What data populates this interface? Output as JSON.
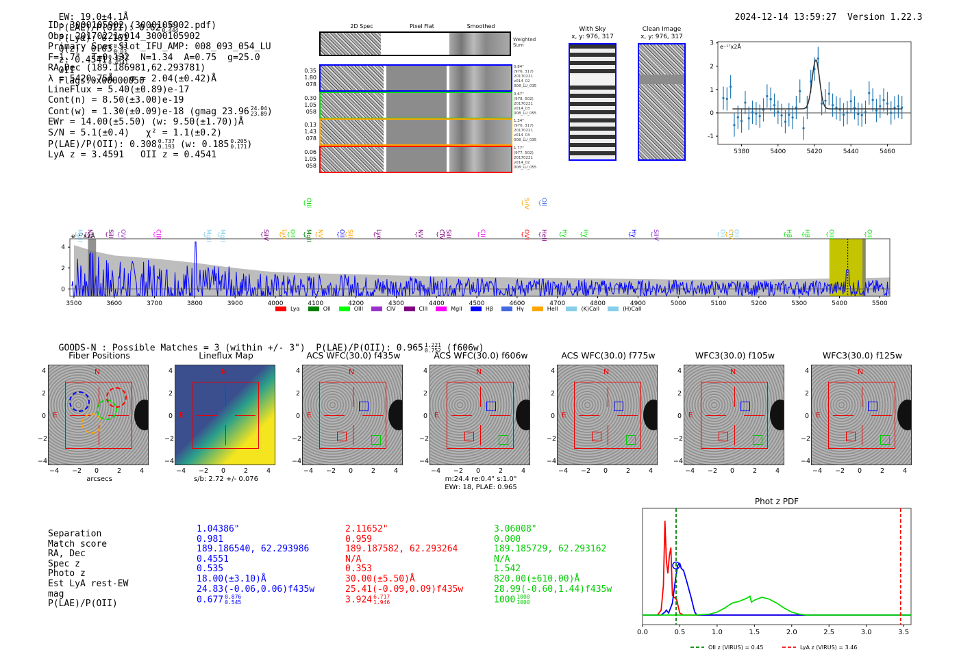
{
  "header": {
    "ew": "EW: 19.0±4.1Å",
    "plae_label": "P(LAE)/P(OII): 0.62",
    "plae_hi": "1.051",
    "plae_lo": "0.444",
    "plya": "P(Lyα): 0.161",
    "qz_label": "Q(z): 0.03",
    "qz_hi": "0.03",
    "qz_lo": "0.03",
    "z_label": "z: 0.4541",
    "z_hi": "0.4541",
    "z_lo": "0.4541",
    "z_line": "OII",
    "flags": "Flags:0x00000050",
    "timestamp": "2024-12-14 13:59:27",
    "version": "Version 1.22.3"
  },
  "info": {
    "id": "ID: 3000105902 (3000105902.pdf)",
    "obs": "Obs: 20170221v014_3000105902",
    "primary": "Primary Spec_Slot_IFU_AMP: 008_093_054_LU",
    "params": "F=1.7\"  T=0.132  N=1.34  A=0.75  g=25.0",
    "radec": "RA,Dec (189.186981,62.293781)",
    "lambda": "λ = 5420.75Å   σ = 2.04(±0.42)Å",
    "lineflux": "LineFlux = 5.40(±0.89)e-17",
    "cont_n": "Cont(n) = 8.50(±3.00)e-19",
    "cont_w": "Cont(w) = 1.30(±0.09)e-18 (gmag 23.96",
    "gmag_hi": "24.04",
    "gmag_lo": "23.89",
    "ewr": "EWr = 14.00(±5.50) (w: 9.50(±1.70))Å",
    "sn": "S/N = 5.1(±0.4)   χ² = 1.1(±0.2)",
    "plae": "P(LAE)/P(OII): 0.308",
    "plae_hi": "0.737",
    "plae_lo": "0.193",
    "plae_w": "(w: 0.185",
    "plae_w_hi": "0.205",
    "plae_w_lo": "0.171",
    "z": "LyA z = 3.4591   OII z = 0.4541"
  },
  "fiber_panel": {
    "col_titles": [
      "2D Spec",
      "Pixel Flat",
      "Smoothed"
    ],
    "weighted_sum": "Weighted\nSum",
    "rows": [
      {
        "labels": [
          "0.35",
          "1.80",
          "078"
        ],
        "color": "#0000ff",
        "info": "0.84\"\n(976, 317)\n20170221\nv014_02\n008_LU_035"
      },
      {
        "labels": [
          "0.30",
          "1.05",
          "058"
        ],
        "color": "#00dd00",
        "info": "0.67\"\n(978, 502)\n20170221\nv014_03\n008_LU_055"
      },
      {
        "labels": [
          "0.13",
          "1.43",
          "078"
        ],
        "color": "#ffa500",
        "info": "1.34\"\n(976, 317)\n20170221\nv014_03\n008_LU_035"
      },
      {
        "labels": [
          "0.06",
          "1.05",
          "058"
        ],
        "color": "#ff0000",
        "info": "1.77\"\n(977, 502)\n20170221\nv014_02\n008_LU_055"
      }
    ]
  },
  "sky_panels": {
    "with_sky_title": "With Sky",
    "with_sky_xy": "x, y: 976, 317",
    "clean_title": "Clean Image",
    "clean_xy": "x, y: 976, 317"
  },
  "chart_data": [
    {
      "type": "scatter",
      "name": "line-fit-zoom",
      "ylabel_text": "e⁻¹⁷x2Å",
      "xlim": [
        5367,
        5473
      ],
      "ylim": [
        -1.35,
        3.05
      ],
      "xticks": [
        5380,
        5400,
        5420,
        5440,
        5460
      ],
      "yticks": [
        -1,
        0,
        1,
        2,
        3
      ],
      "points": {
        "x": [
          5370,
          5372,
          5374,
          5376,
          5378,
          5380,
          5382,
          5384,
          5386,
          5388,
          5390,
          5392,
          5394,
          5396,
          5398,
          5400,
          5402,
          5404,
          5406,
          5408,
          5410,
          5412,
          5414,
          5416,
          5418,
          5420,
          5422,
          5424,
          5426,
          5428,
          5430,
          5432,
          5434,
          5436,
          5438,
          5440,
          5442,
          5444,
          5446,
          5448,
          5450,
          5452,
          5454,
          5456,
          5458,
          5460,
          5462,
          5464,
          5466,
          5468
        ],
        "y": [
          0.63,
          0.6,
          1.12,
          -0.52,
          -0.19,
          -0.35,
          0.44,
          -0.23,
          0.03,
          -0.03,
          -0.14,
          0.13,
          0.72,
          0.59,
          0.33,
          0.03,
          -0.11,
          -0.38,
          -0.08,
          -0.2,
          0.23,
          0.93,
          -0.66,
          0.23,
          1.35,
          1.88,
          2.33,
          0.4,
          0.52,
          0.82,
          0.33,
          0.22,
          0.15,
          -0.08,
          0.01,
          0.5,
          0.22,
          -0.05,
          -0.1,
          0.03,
          0.85,
          0.55,
          0.1,
          0.28,
          0.55,
          0.4,
          0.0,
          0.22,
          0.28,
          0.23
        ],
        "err": 0.5
      },
      "fit": {
        "center": 5420.75,
        "sigma": 2.04,
        "amplitude": 2.1,
        "baseline": 0.17,
        "x_start": 5375,
        "x_end": 5468
      }
    },
    {
      "type": "line",
      "name": "full-spectrum",
      "ylabel_text": "e⁻¹⁷x2Å",
      "xlim": [
        3490,
        5525
      ],
      "ylim": [
        -0.7,
        4.8
      ],
      "xticks": [
        3500,
        3600,
        3700,
        3800,
        3900,
        4000,
        4100,
        4200,
        4300,
        4400,
        4500,
        4600,
        4700,
        4800,
        4900,
        5000,
        5100,
        5200,
        5300,
        5400,
        5500
      ],
      "yticks": [
        0,
        2,
        4
      ],
      "error_envelope": {
        "x": [
          3500,
          3550,
          3600,
          3700,
          3800,
          3900,
          4000,
          4200,
          4400,
          4600,
          4800,
          5000,
          5200,
          5400,
          5525
        ],
        "y": [
          4.2,
          3.6,
          3.2,
          2.9,
          2.5,
          2.0,
          1.6,
          1.4,
          1.2,
          1.1,
          1.0,
          0.9,
          0.9,
          1.0,
          1.1
        ]
      },
      "highlight_band": {
        "x0": 5375,
        "x1": 5465,
        "color": "#c4c400"
      },
      "line_marker": 5420.75,
      "masked_band": {
        "x0": 3535,
        "x1": 3555
      },
      "line_labels": [
        {
          "label": "MgII",
          "wave": 3505,
          "color": "#87ceeb",
          "row": 1
        },
        {
          "label": "NV",
          "wave": 3530,
          "color": "#800080",
          "row": 1
        },
        {
          "label": "SiII",
          "wave": 3582,
          "color": "#800080",
          "row": 1
        },
        {
          "label": "OVI",
          "wave": 3612,
          "color": "#9932cc",
          "row": 1
        },
        {
          "label": "CIII",
          "wave": 3700,
          "color": "#ff00ff",
          "row": 1
        },
        {
          "label": "MgII",
          "wave": 3825,
          "color": "#87ceeb",
          "row": 1
        },
        {
          "label": "MgII",
          "wave": 3860,
          "color": "#87ceeb",
          "row": 1
        },
        {
          "label": "SiIV",
          "wave": 3967,
          "color": "#800080",
          "row": 1
        },
        {
          "label": "Lyα",
          "wave": 4013,
          "color": "#ffa500",
          "row": 1
        },
        {
          "label": "OII",
          "wave": 4033,
          "color": "#00dd00",
          "row": 1
        },
        {
          "label": "MgII",
          "wave": 4073,
          "color": "#008000",
          "row": 1
        },
        {
          "label": "NV",
          "wave": 4102,
          "color": "#ffa500",
          "row": 1
        },
        {
          "label": "OIII",
          "wave": 4073,
          "color": "#00dd00",
          "row": 0
        },
        {
          "label": "OII",
          "wave": 4156,
          "color": "#0000ff",
          "row": 1
        },
        {
          "label": "SiII",
          "wave": 4176,
          "color": "#ffa500",
          "row": 1
        },
        {
          "label": "Lyα",
          "wave": 4247,
          "color": "#800080",
          "row": 1
        },
        {
          "label": "NV",
          "wave": 4350,
          "color": "#800080",
          "row": 1
        },
        {
          "label": "CIV",
          "wave": 4403,
          "color": "#800080",
          "row": 1
        },
        {
          "label": "SiII",
          "wave": 4420,
          "color": "#800080",
          "row": 1
        },
        {
          "label": "CII",
          "wave": 4505,
          "color": "#ff00ff",
          "row": 1
        },
        {
          "label": "OVI",
          "wave": 4614,
          "color": "#ff0000",
          "row": 1
        },
        {
          "label": "SiIV",
          "wave": 4614,
          "color": "#ffa500",
          "row": 0
        },
        {
          "label": "OII",
          "wave": 4657,
          "color": "#4169e1",
          "row": 0
        },
        {
          "label": "HeII",
          "wave": 4657,
          "color": "#800080",
          "row": 1
        },
        {
          "label": "Hγ",
          "wave": 4708,
          "color": "#00dd00",
          "row": 1
        },
        {
          "label": "Hγ",
          "wave": 4760,
          "color": "#00dd00",
          "row": 1
        },
        {
          "label": "Hγ",
          "wave": 4880,
          "color": "#0000ff",
          "row": 1
        },
        {
          "label": "SiIV",
          "wave": 4935,
          "color": "#9932cc",
          "row": 1
        },
        {
          "label": "OII",
          "wave": 5100,
          "color": "#87ceeb",
          "row": 1
        },
        {
          "label": "CIV",
          "wave": 5120,
          "color": "#ffa500",
          "row": 1
        },
        {
          "label": "OII",
          "wave": 5135,
          "color": "#87ceeb",
          "row": 1
        },
        {
          "label": "Hβ",
          "wave": 5265,
          "color": "#00dd00",
          "row": 1
        },
        {
          "label": "Hβ",
          "wave": 5310,
          "color": "#00dd00",
          "row": 1
        },
        {
          "label": "OIII",
          "wave": 5370,
          "color": "#00dd00",
          "row": 1
        },
        {
          "label": "OIII",
          "wave": 5465,
          "color": "#00dd00",
          "row": 1
        }
      ]
    },
    {
      "type": "line",
      "name": "phot-z-pdf",
      "title": "Phot z PDF",
      "xlim": [
        0.0,
        3.6
      ],
      "ylim": [
        0,
        1.0
      ],
      "xticks": [
        0.0,
        0.5,
        1.0,
        1.5,
        2.0,
        2.5,
        3.0,
        3.5
      ],
      "series": [
        {
          "name": "red",
          "color": "#ff0000",
          "x": [
            0,
            0.2,
            0.25,
            0.28,
            0.3,
            0.32,
            0.34,
            0.36,
            0.38,
            0.4,
            0.42,
            0.44,
            0.46,
            0.48,
            0.5,
            0.55,
            0.6,
            3.6
          ],
          "y": [
            0,
            0,
            0.05,
            0.3,
            0.95,
            0.55,
            0.42,
            0.6,
            0.68,
            0.2,
            0.18,
            0.17,
            0.15,
            0.08,
            0.02,
            0.0,
            0,
            0
          ]
        },
        {
          "name": "blue",
          "color": "#0000ff",
          "x": [
            0,
            0.25,
            0.3,
            0.32,
            0.35,
            0.4,
            0.44,
            0.47,
            0.5,
            0.52,
            0.55,
            0.6,
            0.65,
            0.7,
            0.73,
            3.6
          ],
          "y": [
            0,
            0,
            0.03,
            0.05,
            0.02,
            0.12,
            0.35,
            0.5,
            0.52,
            0.47,
            0.45,
            0.32,
            0.18,
            0.03,
            0,
            0
          ]
        },
        {
          "name": "green",
          "color": "#00dd00",
          "x": [
            0,
            0.7,
            0.9,
            1.0,
            1.1,
            1.2,
            1.3,
            1.4,
            1.44,
            1.46,
            1.5,
            1.6,
            1.7,
            1.8,
            1.9,
            2.0,
            2.1,
            2.2,
            3.6
          ],
          "y": [
            0,
            0,
            0.01,
            0.03,
            0.07,
            0.12,
            0.14,
            0.17,
            0.19,
            0.13,
            0.15,
            0.18,
            0.16,
            0.12,
            0.07,
            0.03,
            0.01,
            0,
            0
          ]
        }
      ],
      "vlines": [
        {
          "x": 0.45,
          "color": "#008000",
          "label": "OII z (VIRUS) = 0.45"
        },
        {
          "x": 3.46,
          "color": "#ff0000",
          "label": "LyA z (VIRUS) = 3.46"
        }
      ],
      "marker": {
        "x": 0.45,
        "y": 0.5,
        "color": "#0000ff"
      }
    }
  ],
  "legend": [
    {
      "label": "Lyα",
      "color": "#ff0000"
    },
    {
      "label": "OII",
      "color": "#008000"
    },
    {
      "label": "OIII",
      "color": "#00ff00"
    },
    {
      "label": "CIV",
      "color": "#9932cc"
    },
    {
      "label": "CIII",
      "color": "#800080"
    },
    {
      "label": "MgII",
      "color": "#ff00ff"
    },
    {
      "label": "Hβ",
      "color": "#0000ff"
    },
    {
      "label": "Hγ",
      "color": "#4169e1"
    },
    {
      "label": "HeII",
      "color": "#ffa500"
    },
    {
      "label": "(K)CaII",
      "color": "#87ceeb"
    },
    {
      "label": "(H)CaII",
      "color": "#87ceeb"
    }
  ],
  "catalog": {
    "summary": "GOODS-N : Possible Matches = 3 (within +/- 3\")  P(LAE)/P(OII): 0.965",
    "summary_hi": "1.221",
    "summary_lo": "0.752",
    "summary_filter": "(f606w)",
    "cutouts": [
      {
        "title": "Fiber Positions",
        "xlabel": "arcsecs"
      },
      {
        "title": "Lineflux Map",
        "xlabel": "s/b: 2.72 +/- 0.076"
      },
      {
        "title": "ACS WFC(30.0) f435w",
        "xlabel": ""
      },
      {
        "title": "ACS WFC(30.0) f606w",
        "xlabel": "m:24.4  re:0.4\"  s:1.0\"",
        "xlabel2": "EWr: 18, PLAE: 0.965"
      },
      {
        "title": "ACS WFC(30.0) f775w",
        "xlabel": ""
      },
      {
        "title": "WFC3(30.0) f105w",
        "xlabel": ""
      },
      {
        "title": "WFC3(30.0) f125w",
        "xlabel": ""
      }
    ],
    "axis_ticks": [
      "4",
      "2",
      "0",
      "−2",
      "−4"
    ],
    "x_ticks": [
      "−4",
      "−2",
      "0",
      "2",
      "4"
    ],
    "compass_n": "N",
    "compass_e": "E"
  },
  "match_table": {
    "row_labels": [
      "Separation",
      "Match score",
      "RA, Dec",
      "Spec z",
      "Photo z",
      "Est LyA rest-EW",
      "mag",
      "P(LAE)/P(OII)"
    ],
    "columns": [
      {
        "color": "#0000ff",
        "values": [
          "1.04386\"",
          "0.981",
          "189.186540, 62.293986",
          "0.4551",
          "0.535",
          "18.00(±3.10)Å",
          "24.83(-0.06,0.06)f435w",
          "0.677"
        ],
        "plae_hi": "0.876",
        "plae_lo": "0.545"
      },
      {
        "color": "#ff0000",
        "values": [
          "2.11652\"",
          "0.959",
          "189.187582, 62.293264",
          "N/A",
          "0.353",
          "30.00(±5.50)Å",
          "25.41(-0.09,0.09)f435w",
          "3.924"
        ],
        "plae_hi": "6.717",
        "plae_lo": "1.946"
      },
      {
        "color": "#00cc00",
        "values": [
          "3.06008\"",
          "0.000",
          "189.185729, 62.293162",
          "N/A",
          "1.542",
          "820.00(±610.00)Å",
          "28.99(-0.60,1.44)f435w",
          "1000"
        ],
        "plae_hi": "1000",
        "plae_lo": "1000"
      }
    ]
  }
}
